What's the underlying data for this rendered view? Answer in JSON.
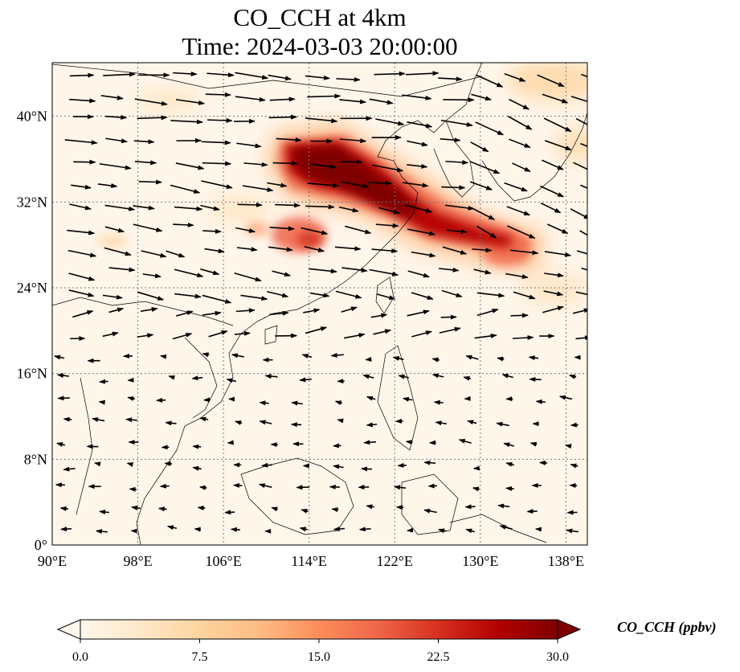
{
  "title": {
    "line1": "CO_CCH at 4km",
    "line2": "Time: 2024-03-03 20:00:00"
  },
  "axes": {
    "lon_ticks": [
      "90°E",
      "98°E",
      "106°E",
      "114°E",
      "122°E",
      "130°E",
      "138°E"
    ],
    "lat_ticks": [
      "0°",
      "8°N",
      "16°N",
      "24°N",
      "32°N",
      "40°N"
    ],
    "lon_values": [
      90,
      98,
      106,
      114,
      122,
      130,
      138
    ],
    "lat_values": [
      0,
      8,
      16,
      24,
      32,
      40
    ],
    "lon_range": [
      90,
      140
    ],
    "lat_range": [
      0,
      45
    ],
    "grid": "dotted"
  },
  "colorbar": {
    "label": "CO_CCH (ppbv)",
    "ticks": [
      "0.0",
      "7.5",
      "15.0",
      "22.5",
      "30.0"
    ],
    "min": 0,
    "max": 30,
    "extend": "both",
    "colormap": "OrRd",
    "colors": [
      "#fff7ec",
      "#fee8c8",
      "#fdd49e",
      "#fdbb84",
      "#fc8d59",
      "#ef6548",
      "#d7301f",
      "#b30000",
      "#7f0000"
    ]
  },
  "chart_data": {
    "type": "heatmap",
    "variable": "CO_CCH",
    "units": "ppbv",
    "level": "4km",
    "time": "2024-03-03 20:00:00",
    "plume": [
      {
        "lon": 118.5,
        "lat": 34.5,
        "value": 30
      },
      {
        "lon": 114.5,
        "lat": 35.5,
        "value": 30
      },
      {
        "lon": 122,
        "lat": 32,
        "value": 28
      },
      {
        "lon": 126,
        "lat": 29,
        "value": 24
      },
      {
        "lon": 111.5,
        "lat": 28.5,
        "value": 14
      },
      {
        "lon": 115,
        "lat": 28,
        "value": 16
      },
      {
        "lon": 133,
        "lat": 27,
        "value": 14
      }
    ],
    "wind_vectors": "quiver field, westerly flow north of 20°N, easterly flow south of 18°N"
  }
}
